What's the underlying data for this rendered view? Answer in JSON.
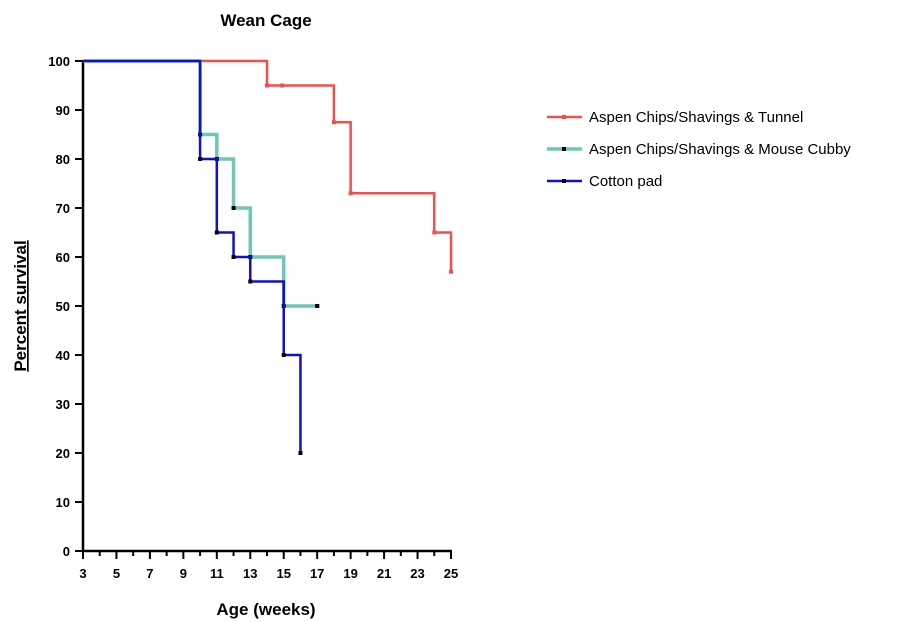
{
  "chart_data": {
    "type": "line",
    "step": true,
    "title": "Wean Cage",
    "xlabel": "Age (weeks)",
    "ylabel": "Percent survival",
    "xlim": [
      3,
      25
    ],
    "ylim": [
      0,
      100
    ],
    "x_ticks": [
      3,
      5,
      7,
      9,
      11,
      13,
      15,
      17,
      19,
      21,
      23,
      25
    ],
    "y_ticks": [
      0,
      10,
      20,
      30,
      40,
      50,
      60,
      70,
      80,
      90,
      100
    ],
    "grid": false,
    "legend_position": "right",
    "series": [
      {
        "name": "Aspen Chips/Shavings & Tunnel",
        "color": "#f0504a",
        "points": [
          [
            3,
            100
          ],
          [
            14,
            95
          ],
          [
            18,
            87.5
          ],
          [
            19,
            73
          ],
          [
            24,
            65
          ],
          [
            25,
            57
          ]
        ],
        "censored": [
          [
            14.9,
            95
          ]
        ]
      },
      {
        "name": "Aspen Chips/Shavings & Mouse Cubby",
        "color": "#6fc7b5",
        "points": [
          [
            3,
            100
          ],
          [
            10,
            85
          ],
          [
            11,
            80
          ],
          [
            12,
            70
          ],
          [
            13,
            60
          ],
          [
            15,
            50
          ],
          [
            17,
            50
          ]
        ],
        "censored": [
          [
            17,
            50
          ]
        ]
      },
      {
        "name": "Cotton pad",
        "color": "#1010c8",
        "points": [
          [
            3,
            100
          ],
          [
            10,
            80
          ],
          [
            11,
            65
          ],
          [
            12,
            60
          ],
          [
            13,
            55
          ],
          [
            15,
            40
          ],
          [
            16,
            20
          ]
        ],
        "censored": []
      }
    ]
  }
}
